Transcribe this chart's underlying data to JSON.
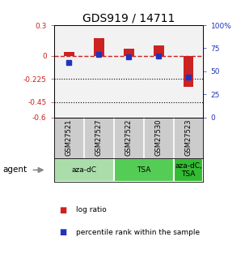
{
  "title": "GDS919 / 14711",
  "samples": [
    "GSM27521",
    "GSM27527",
    "GSM27522",
    "GSM27530",
    "GSM27523"
  ],
  "log_ratios": [
    0.04,
    0.17,
    0.07,
    0.1,
    -0.3
  ],
  "percentile_ranks": [
    60,
    68,
    66,
    67,
    44
  ],
  "ylim_left": [
    -0.6,
    0.3
  ],
  "ylim_right": [
    0,
    100
  ],
  "yticks_left": [
    0.3,
    0.0,
    -0.225,
    -0.45,
    -0.6
  ],
  "ytick_labels_left": [
    "0.3",
    "0",
    "-0.225",
    "-0.45",
    "-0.6"
  ],
  "yticks_right": [
    100,
    75,
    50,
    25,
    0
  ],
  "ytick_labels_right": [
    "100%",
    "75",
    "50",
    "25",
    "0"
  ],
  "hlines_dotted": [
    -0.225,
    -0.45
  ],
  "hline_dashed": 0.0,
  "bar_color_red": "#cc2222",
  "bar_color_blue": "#2233bb",
  "groups": [
    {
      "label": "aza-dC",
      "indices": [
        0,
        1
      ],
      "color": "#aaddaa"
    },
    {
      "label": "TSA",
      "indices": [
        2,
        3
      ],
      "color": "#55cc55"
    },
    {
      "label": "aza-dC,\nTSA",
      "indices": [
        4
      ],
      "color": "#33bb33"
    }
  ],
  "agent_label": "agent",
  "legend_red": "log ratio",
  "legend_blue": "percentile rank within the sample",
  "background_color": "#ffffff",
  "plot_bg_color": "#f2f2f2",
  "sample_bg_color": "#cccccc",
  "bar_width": 0.35,
  "blue_marker_size": 5,
  "title_fontsize": 10
}
